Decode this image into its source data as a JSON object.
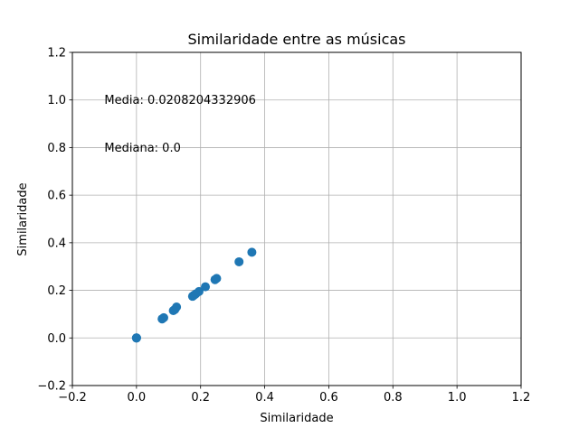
{
  "chart_data": {
    "type": "scatter",
    "title": "Similaridade entre as músicas",
    "xlabel": "Similaridade",
    "ylabel": "Similaridade",
    "xlim": [
      -0.2,
      1.2
    ],
    "ylim": [
      -0.2,
      1.2
    ],
    "xticks": [
      "−0.2",
      "0.0",
      "0.2",
      "0.4",
      "0.6",
      "0.8",
      "1.0",
      "1.2"
    ],
    "yticks": [
      "−0.2",
      "0.0",
      "0.2",
      "0.4",
      "0.6",
      "0.8",
      "1.0",
      "1.2"
    ],
    "grid": true,
    "annotations": [
      {
        "text": "Media: 0.0208204332906",
        "x": -0.1,
        "y": 1.0
      },
      {
        "text": "Mediana: 0.0",
        "x": -0.1,
        "y": 0.8
      }
    ],
    "point_color": "#1f77b4",
    "points": [
      {
        "x": 0.0,
        "y": 0.0
      },
      {
        "x": 0.0,
        "y": 0.0
      },
      {
        "x": 0.0,
        "y": 0.0
      },
      {
        "x": 0.08,
        "y": 0.08
      },
      {
        "x": 0.085,
        "y": 0.085
      },
      {
        "x": 0.115,
        "y": 0.115
      },
      {
        "x": 0.12,
        "y": 0.12
      },
      {
        "x": 0.125,
        "y": 0.13
      },
      {
        "x": 0.175,
        "y": 0.175
      },
      {
        "x": 0.18,
        "y": 0.18
      },
      {
        "x": 0.185,
        "y": 0.185
      },
      {
        "x": 0.195,
        "y": 0.195
      },
      {
        "x": 0.215,
        "y": 0.215
      },
      {
        "x": 0.245,
        "y": 0.245
      },
      {
        "x": 0.25,
        "y": 0.25
      },
      {
        "x": 0.32,
        "y": 0.32
      },
      {
        "x": 0.36,
        "y": 0.36
      }
    ]
  }
}
